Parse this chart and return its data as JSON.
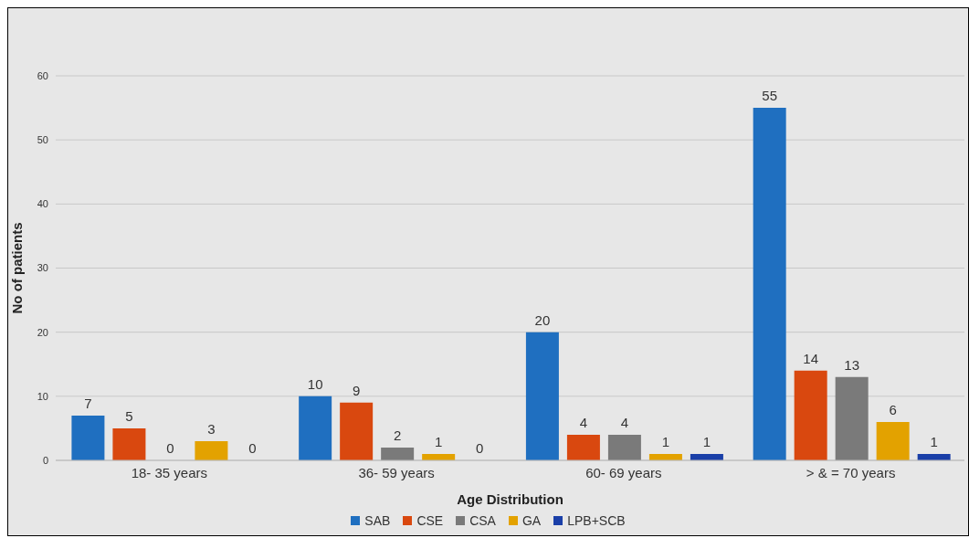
{
  "chart_data": {
    "type": "bar",
    "xlabel": "Age Distribution",
    "ylabel": "No of patients",
    "categories": [
      "18- 35 years",
      "36- 59 years",
      "60- 69 years",
      "> & = 70 years"
    ],
    "series": [
      {
        "name": "SAB",
        "color": "#1f6fc0",
        "values": [
          7,
          10,
          20,
          55
        ]
      },
      {
        "name": "CSE",
        "color": "#d9480f",
        "values": [
          5,
          9,
          4,
          14
        ]
      },
      {
        "name": "CSA",
        "color": "#7a7a7a",
        "values": [
          0,
          2,
          4,
          13
        ]
      },
      {
        "name": "GA",
        "color": "#e3a200",
        "values": [
          3,
          1,
          1,
          6
        ]
      },
      {
        "name": "LPB+SCB",
        "color": "#1a3fa8",
        "values": [
          0,
          0,
          1,
          1
        ]
      }
    ],
    "ylim": [
      0,
      60
    ],
    "yticks": [
      0,
      10,
      20,
      30,
      40,
      50,
      60
    ],
    "grid": "y",
    "legend": "bottom",
    "data_labels": true
  }
}
